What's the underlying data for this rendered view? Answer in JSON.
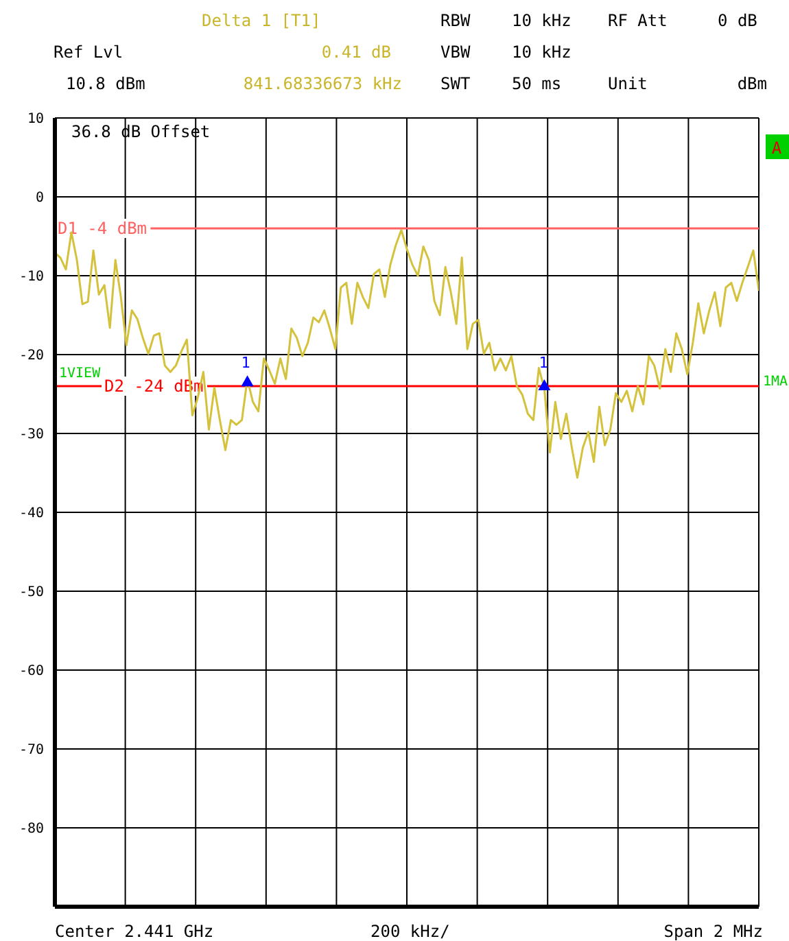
{
  "chart_data": {
    "type": "line",
    "annotations": [
      "Delta 1 [T1]",
      "RBW",
      "10 kHz",
      "RF Att",
      "0 dB",
      "Ref Lvl",
      "0.41 dB",
      "VBW",
      "10 kHz",
      "10.8 dBm",
      "841.68336673 kHz",
      "SWT",
      "50 ms",
      "Unit",
      "dBm",
      "36.8 dB Offset",
      "1VIEW",
      "1MA",
      "A",
      "Center 2.441 GHz",
      "200 kHz/",
      "Span 2 MHz",
      "1",
      "1"
    ],
    "categories": [
      null,
      null,
      null,
      null,
      null,
      null,
      null,
      null,
      null,
      null,
      null,
      null,
      null,
      null,
      null,
      null,
      null,
      null,
      null,
      null,
      null,
      null,
      null,
      null,
      null,
      null,
      null,
      null,
      null,
      null,
      null,
      null,
      null,
      null,
      null,
      null,
      null,
      null,
      null,
      null,
      null,
      null,
      null,
      null,
      null,
      null,
      null,
      null,
      null,
      null,
      null,
      null,
      null,
      null,
      null,
      null,
      null,
      null,
      null,
      null,
      null,
      null,
      null,
      null,
      null,
      null,
      null,
      null,
      null,
      null,
      null,
      null,
      null,
      null,
      null,
      null,
      null,
      null,
      null,
      null,
      null,
      null,
      null,
      null,
      null,
      null,
      null,
      null,
      null,
      null,
      null,
      null,
      null,
      null,
      null,
      null,
      null,
      null,
      null,
      null,
      null,
      null,
      null,
      null,
      null,
      null,
      null,
      null,
      null,
      null,
      null,
      null,
      null,
      null,
      null,
      null,
      null,
      null,
      null,
      null,
      null,
      null,
      null,
      null,
      null,
      null,
      null,
      null,
      null
    ],
    "series": [
      {
        "color": "#d4c23c",
        "marker": "none",
        "values": [
          -7.1,
          -7.7,
          -9.2,
          -4.5,
          -8.0,
          -13.6,
          -13.3,
          -6.8,
          -12.4,
          -11.2,
          -16.6,
          -8.0,
          -12.7,
          -18.8,
          -14.4,
          -15.5,
          -17.9,
          -19.9,
          -17.6,
          -17.3,
          -21.4,
          -22.2,
          -21.4,
          -19.6,
          -18.1,
          -27.7,
          -25.4,
          -22.2,
          -29.5,
          -24.2,
          -28.3,
          -32.1,
          -28.3,
          -28.9,
          -28.3,
          -23.1,
          -26.0,
          -27.2,
          -20.5,
          -22.0,
          -23.7,
          -20.5,
          -23.1,
          -16.7,
          -17.9,
          -20.2,
          -18.5,
          -15.3,
          -15.9,
          -14.4,
          -16.7,
          -19.3,
          -11.5,
          -10.9,
          -16.1,
          -10.9,
          -12.7,
          -14.1,
          -9.8,
          -9.2,
          -12.7,
          -8.6,
          -6.1,
          -4.2,
          -6.6,
          -8.6,
          -10.0,
          -6.3,
          -8.0,
          -13.2,
          -15.0,
          -8.9,
          -12.1,
          -16.1,
          -7.7,
          -19.3,
          -16.1,
          -15.6,
          -19.9,
          -18.5,
          -22.0,
          -20.5,
          -22.0,
          -20.2,
          -24.0,
          -25.1,
          -27.5,
          -28.3,
          -21.7,
          -24.3,
          -32.4,
          -26.0,
          -30.7,
          -27.5,
          -31.8,
          -35.6,
          -31.8,
          -29.8,
          -33.6,
          -26.6,
          -31.5,
          -29.5,
          -24.9,
          -26.0,
          -24.6,
          -27.2,
          -24.0,
          -26.3,
          -20.2,
          -21.4,
          -24.3,
          -19.3,
          -22.2,
          -17.3,
          -19.3,
          -22.5,
          -18.5,
          -13.5,
          -17.3,
          -14.4,
          -12.1,
          -16.4,
          -11.5,
          -10.9,
          -13.2,
          -10.9,
          -8.9,
          -6.8,
          -11.8
        ]
      },
      {
        "type": "scatter",
        "color": "#0000ff",
        "marker": "triangle",
        "values": [
          null,
          null,
          null,
          null,
          null,
          null,
          null,
          null,
          null,
          null,
          null,
          null,
          null,
          null,
          null,
          null,
          null,
          null,
          null,
          null,
          null,
          null,
          null,
          null,
          null,
          null,
          null,
          null,
          null,
          null,
          null,
          null,
          null,
          null,
          null,
          -23.5,
          null,
          null,
          null,
          null,
          null,
          null,
          null,
          null,
          null,
          null,
          null,
          null,
          null,
          null,
          null,
          null,
          null,
          null,
          null,
          null,
          null,
          null,
          null,
          null,
          null,
          null,
          null,
          null,
          null,
          null,
          null,
          null,
          null,
          null,
          null,
          null,
          null,
          null,
          null,
          null,
          null,
          null,
          null,
          null,
          null,
          null,
          null,
          null,
          null,
          null,
          null,
          null,
          null,
          -24.0,
          null,
          null,
          null,
          null,
          null,
          null,
          null,
          null,
          null,
          null,
          null,
          null,
          null,
          null,
          null,
          null,
          null,
          null,
          null,
          null,
          null,
          null,
          null,
          null,
          null,
          null,
          null,
          null,
          null,
          null,
          null,
          null,
          null,
          null,
          null,
          null,
          null,
          null,
          null
        ]
      }
    ],
    "ylim": [
      -90,
      10
    ],
    "yticks": [
      10,
      0,
      -10,
      -20,
      -30,
      -40,
      -50,
      -60,
      -70,
      -80
    ],
    "tick_labels": "y",
    "grid": true,
    "ref_lines": [
      {
        "axis": "y",
        "value": -4,
        "label": "D1 -4 dBm",
        "color": "#ff6060"
      },
      {
        "axis": "y",
        "value": -24,
        "label": "D2 -24 dBm",
        "color": "#ff0000"
      }
    ]
  }
}
